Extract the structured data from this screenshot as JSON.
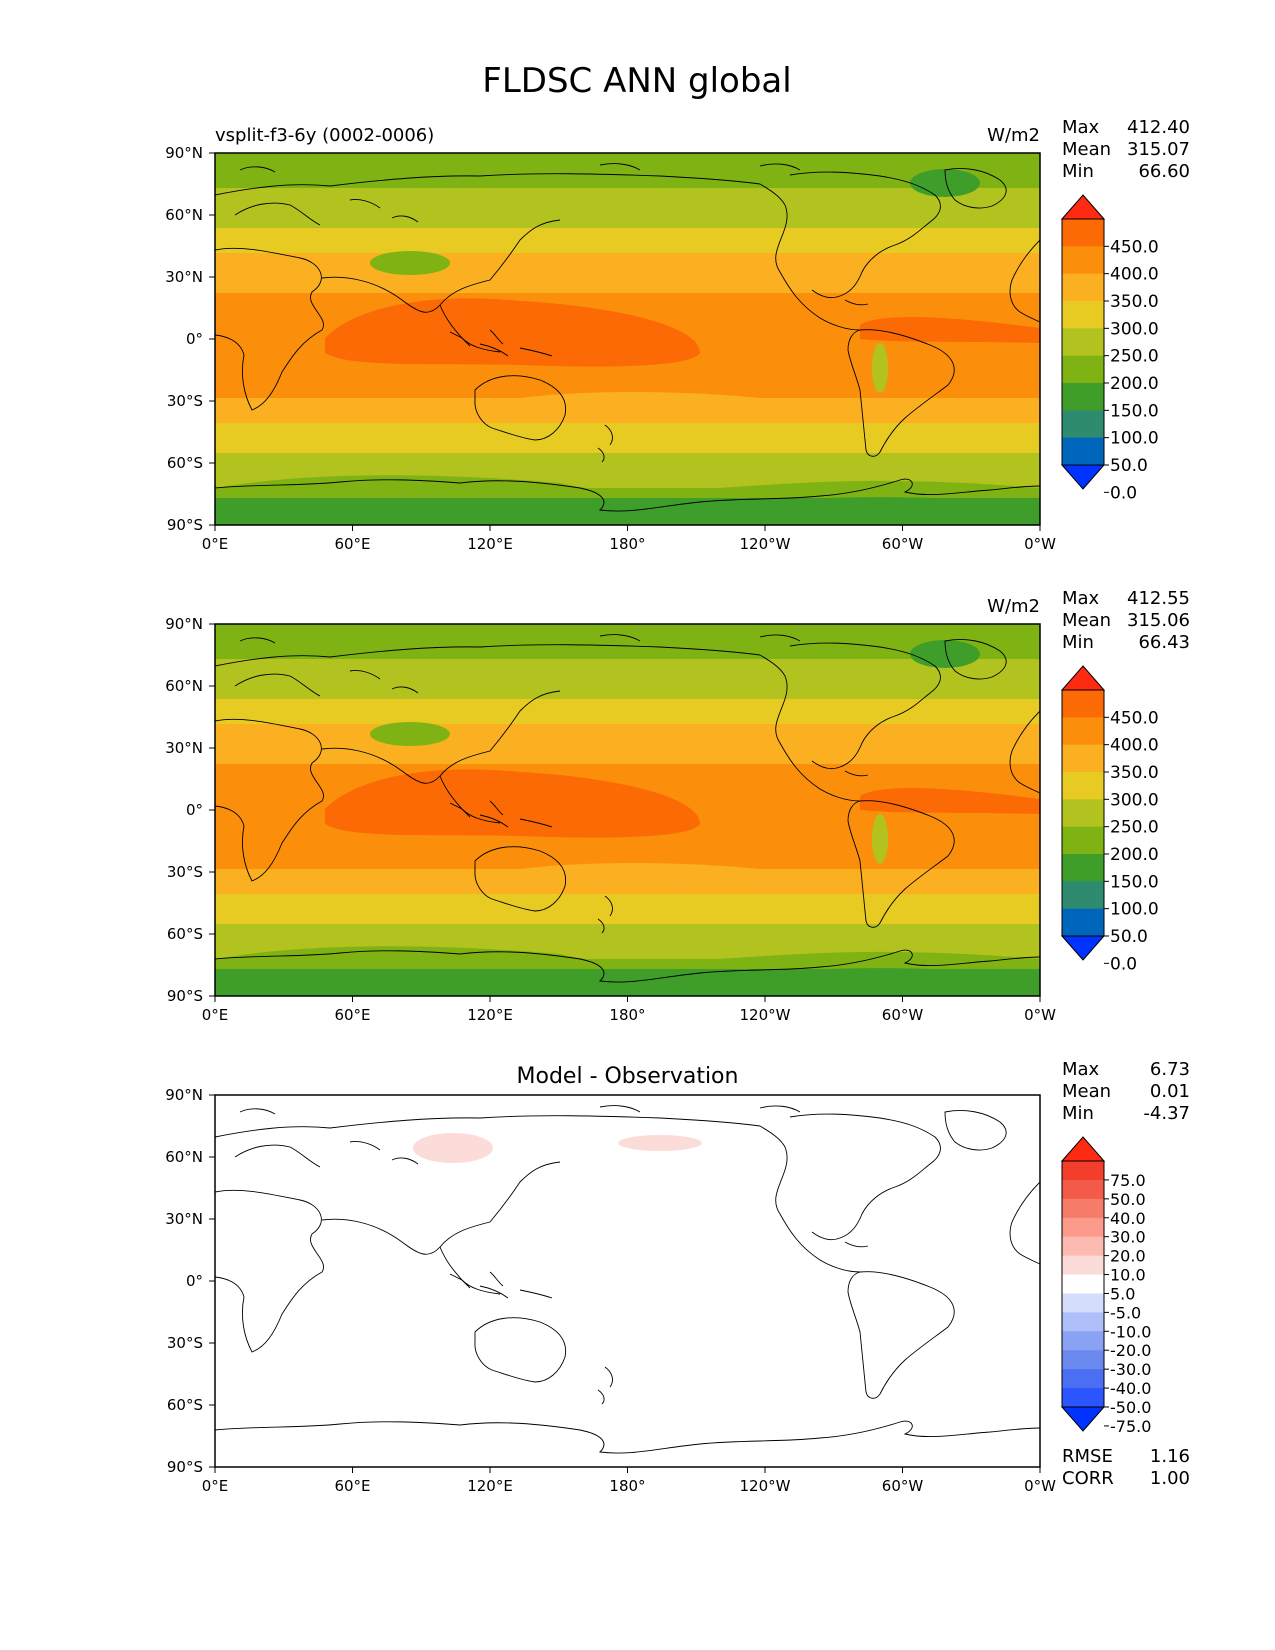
{
  "figure_title": "FLDSC ANN global",
  "panels": [
    {
      "id": "test",
      "left_title": "vsplit-f3-6y (0002-0006)",
      "center_title": "",
      "units": "W/m2",
      "stats": [
        {
          "label": "Max",
          "value": "412.40"
        },
        {
          "label": "Mean",
          "value": "315.07"
        },
        {
          "label": "Min",
          "value": "66.60"
        }
      ],
      "colorbar_labels": [
        "450.0",
        "400.0",
        "350.0",
        "300.0",
        "250.0",
        "200.0",
        "150.0",
        "100.0",
        "50.0",
        "0.0"
      ]
    },
    {
      "id": "reference",
      "left_title": "",
      "center_title": "",
      "units": "W/m2",
      "stats": [
        {
          "label": "Max",
          "value": "412.55"
        },
        {
          "label": "Mean",
          "value": "315.06"
        },
        {
          "label": "Min",
          "value": "66.43"
        }
      ],
      "colorbar_labels": [
        "450.0",
        "400.0",
        "350.0",
        "300.0",
        "250.0",
        "200.0",
        "150.0",
        "100.0",
        "50.0",
        "0.0"
      ]
    },
    {
      "id": "difference",
      "left_title": "",
      "center_title": "Model - Observation",
      "units": "",
      "stats": [
        {
          "label": "Max",
          "value": "6.73"
        },
        {
          "label": "Mean",
          "value": "0.01"
        },
        {
          "label": "Min",
          "value": "-4.37"
        }
      ],
      "colorbar_labels": [
        "75.0",
        "50.0",
        "40.0",
        "30.0",
        "20.0",
        "10.0",
        "5.0",
        "-5.0",
        "-10.0",
        "-20.0",
        "-30.0",
        "-40.0",
        "-50.0",
        "-75.0"
      ],
      "extra_stats": [
        {
          "label": "RMSE",
          "value": "1.16"
        },
        {
          "label": "CORR",
          "value": "1.00"
        }
      ]
    }
  ],
  "lat_ticks": [
    "90°N",
    "60°N",
    "30°N",
    "0°",
    "30°S",
    "60°S",
    "90°S"
  ],
  "lon_ticks": [
    "0°E",
    "60°E",
    "120°E",
    "180°",
    "120°W",
    "60°W",
    "0°W"
  ],
  "colors": {
    "field": [
      "#0033ff",
      "#0066bb",
      "#2e8b70",
      "#3f9e2a",
      "#7fb314",
      "#b2c320",
      "#e8cb22",
      "#fbb021",
      "#fb8f0b",
      "#fb6a04",
      "#fe2a12"
    ],
    "diff": [
      "#0033ff",
      "#2a55ff",
      "#4a6ff3",
      "#6b8af0",
      "#8aa2f4",
      "#adbef8",
      "#d4ddfb",
      "#ffffff",
      "#fcdcd8",
      "#fdbab1",
      "#fc9a8c",
      "#f77b69",
      "#f45a48",
      "#f33e2b",
      "#fe2a12"
    ]
  }
}
